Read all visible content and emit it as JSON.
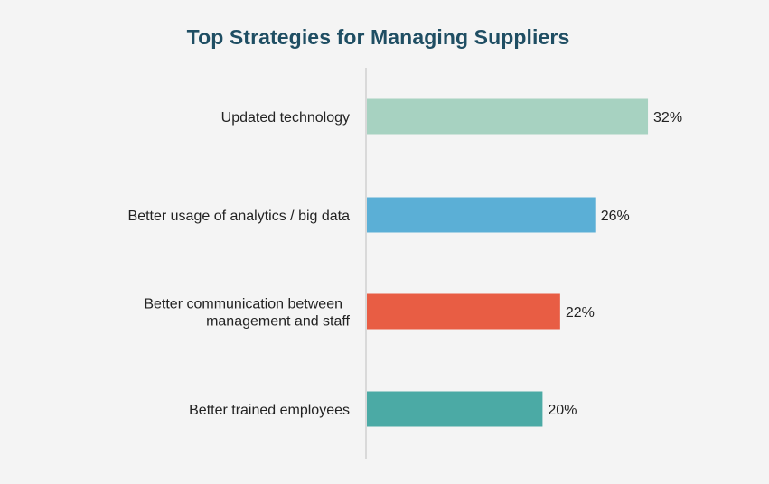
{
  "chart_data": {
    "type": "bar",
    "orientation": "horizontal",
    "title": "Top Strategies for Managing Suppliers",
    "xlabel": "",
    "ylabel": "",
    "categories": [
      "Updated technology",
      "Better usage of analytics / big data",
      "Better communication between management and staff",
      "Better trained employees"
    ],
    "category_lines": [
      [
        "Updated technology"
      ],
      [
        "Better usage of analytics / big data"
      ],
      [
        "Better communication between",
        "management and staff"
      ],
      [
        "Better trained employees"
      ]
    ],
    "values": [
      32,
      26,
      22,
      20
    ],
    "value_labels": [
      "32%",
      "26%",
      "22%",
      "20%"
    ],
    "unit": "%",
    "colors": [
      "#a7d2c1",
      "#5bafd6",
      "#e85d44",
      "#4baaa5"
    ],
    "axis_line_color": "#d0d0d0",
    "grid": false,
    "legend": "none"
  }
}
